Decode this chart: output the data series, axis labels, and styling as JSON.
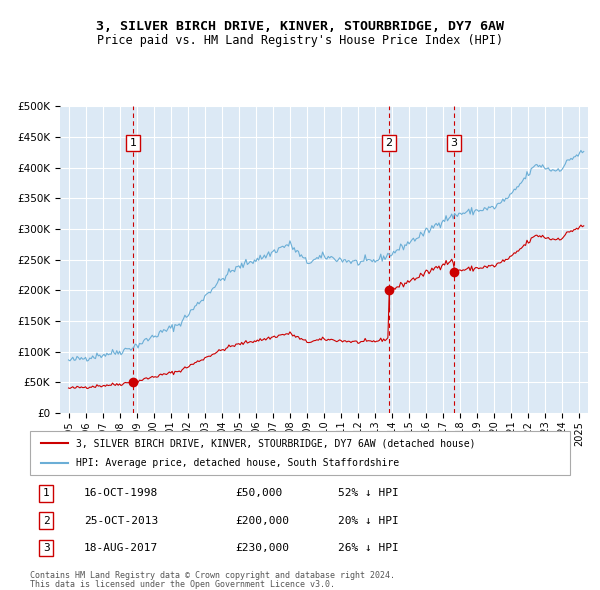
{
  "title": "3, SILVER BIRCH DRIVE, KINVER, STOURBRIDGE, DY7 6AW",
  "subtitle": "Price paid vs. HM Land Registry's House Price Index (HPI)",
  "legend_line1": "3, SILVER BIRCH DRIVE, KINVER, STOURBRIDGE, DY7 6AW (detached house)",
  "legend_line2": "HPI: Average price, detached house, South Staffordshire",
  "footer1": "Contains HM Land Registry data © Crown copyright and database right 2024.",
  "footer2": "This data is licensed under the Open Government Licence v3.0.",
  "transactions": [
    {
      "label": "1",
      "date": "16-OCT-1998",
      "price": 50000,
      "pct": "52% ↓ HPI"
    },
    {
      "label": "2",
      "date": "25-OCT-2013",
      "price": 200000,
      "pct": "20% ↓ HPI"
    },
    {
      "label": "3",
      "date": "18-AUG-2017",
      "price": 230000,
      "pct": "26% ↓ HPI"
    }
  ],
  "transaction_dates_decimal": [
    1998.79,
    2013.81,
    2017.63
  ],
  "transaction_prices": [
    50000,
    200000,
    230000
  ],
  "vline_dates_decimal": [
    1998.79,
    2013.81,
    2017.63
  ],
  "hpi_color": "#6baed6",
  "price_color": "#cc0000",
  "bg_color": "#dce9f5",
  "plot_bg_color": "#dce9f5",
  "vline_color": "#cc0000",
  "grid_color": "#ffffff",
  "ylim": [
    0,
    500000
  ],
  "yticks": [
    0,
    50000,
    100000,
    150000,
    200000,
    250000,
    300000,
    350000,
    400000,
    450000,
    500000
  ],
  "xlim_start": 1994.5,
  "xlim_end": 2025.5
}
